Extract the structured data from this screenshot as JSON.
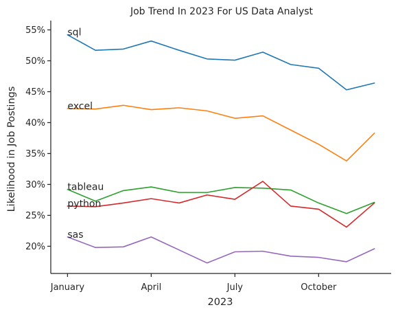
{
  "chart_data": {
    "type": "line",
    "title": "Job Trend In 2023 For US Data Analyst",
    "xlabel": "2023",
    "ylabel": "Likelihood in Job Postings",
    "x_tick_labels": [
      {
        "month": 1,
        "label": "January"
      },
      {
        "month": 4,
        "label": "April"
      },
      {
        "month": 7,
        "label": "July"
      },
      {
        "month": 10,
        "label": "October"
      }
    ],
    "y_tick_labels": [
      {
        "value": 20,
        "label": "20%"
      },
      {
        "value": 25,
        "label": "25%"
      },
      {
        "value": 30,
        "label": "30%"
      },
      {
        "value": 35,
        "label": "35%"
      },
      {
        "value": 40,
        "label": "40%"
      },
      {
        "value": 45,
        "label": "45%"
      },
      {
        "value": 50,
        "label": "50%"
      },
      {
        "value": 55,
        "label": "55%"
      }
    ],
    "xlim": [
      0.4,
      12.6
    ],
    "ylim": [
      15.6,
      56.5
    ],
    "grid": false,
    "legend": "none",
    "x": [
      1,
      2,
      3,
      4,
      5,
      6,
      7,
      8,
      9,
      10,
      11,
      12
    ],
    "series": [
      {
        "name": "sql",
        "color": "#1f77b4",
        "values": [
          54.2,
          51.7,
          51.9,
          53.2,
          51.7,
          50.3,
          50.1,
          51.4,
          49.4,
          48.8,
          45.3,
          46.4
        ]
      },
      {
        "name": "excel",
        "color": "#ff7f0e",
        "values": [
          42.3,
          42.2,
          42.8,
          42.1,
          42.4,
          41.9,
          40.7,
          41.1,
          38.8,
          36.5,
          33.8,
          38.3
        ]
      },
      {
        "name": "tableau",
        "color": "#2ca02c",
        "values": [
          29.2,
          27.3,
          29.0,
          29.6,
          28.7,
          28.7,
          29.5,
          29.4,
          29.1,
          27.0,
          25.3,
          27.1
        ]
      },
      {
        "name": "python",
        "color": "#d62728",
        "values": [
          26.5,
          26.4,
          27.0,
          27.7,
          27.0,
          28.3,
          27.6,
          30.5,
          26.5,
          26.0,
          23.1,
          27.0
        ]
      },
      {
        "name": "sas",
        "color": "#9467bd",
        "values": [
          21.5,
          19.8,
          19.9,
          21.5,
          19.4,
          17.3,
          19.1,
          19.2,
          18.4,
          18.2,
          17.5,
          19.6
        ]
      }
    ]
  }
}
